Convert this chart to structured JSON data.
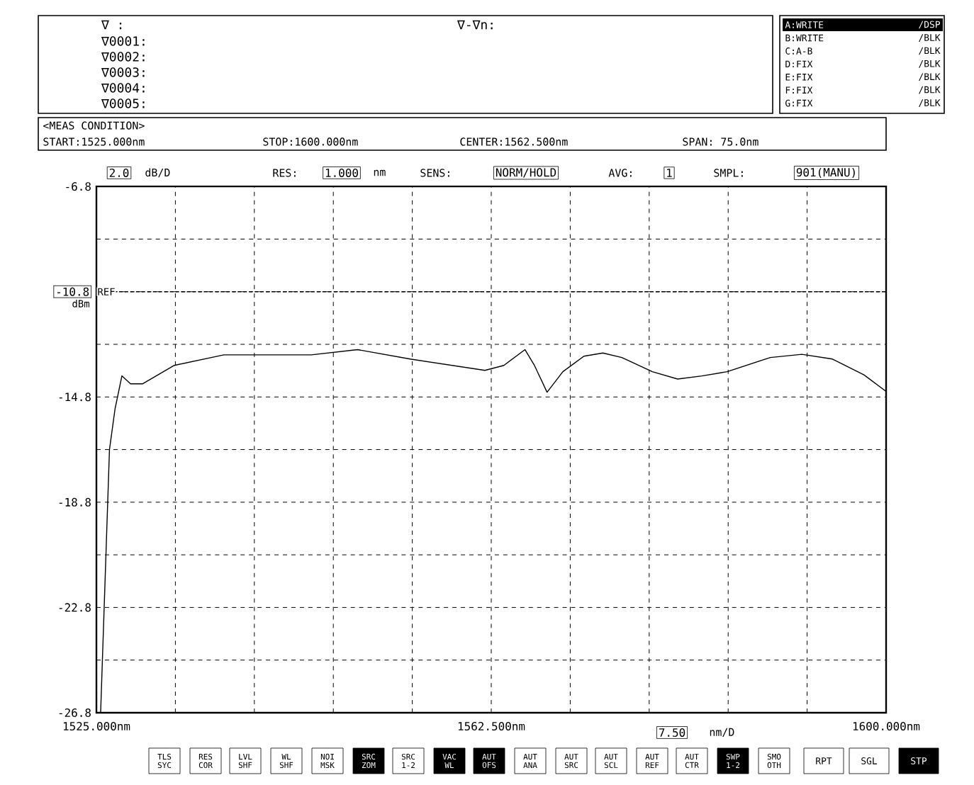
{
  "chart_data": {
    "type": "line",
    "color": "#000000",
    "line_style": "solid",
    "grid": true,
    "ylabel": "dBm",
    "x": [
      1525.4,
      1526.24,
      1526.77,
      1527.42,
      1528.24,
      1529.4,
      1532.4,
      1537.1,
      1545.4,
      1549.8,
      1554.8,
      1561.9,
      1563.7,
      1565.7,
      1566.6,
      1567.8,
      1569.3,
      1571.3,
      1573.1,
      1574.9,
      1577.8,
      1580.2,
      1582.5,
      1584.9,
      1589.0,
      1592.0,
      1594.9,
      1597.9,
      1600
    ],
    "values": [
      -26.8,
      -16.8,
      -15.25,
      -14.0,
      -14.3,
      -14.3,
      -13.6,
      -13.2,
      -13.2,
      -13.0,
      -13.36,
      -13.79,
      -13.6,
      -13.0,
      -13.6,
      -14.62,
      -13.84,
      -13.25,
      -13.13,
      -13.3,
      -13.84,
      -14.12,
      -14.0,
      -13.84,
      -13.3,
      -13.18,
      -13.36,
      -13.96,
      -14.59
    ],
    "xlim": [
      1525,
      1600
    ],
    "ylim": [
      -26.8,
      -6.8
    ],
    "xticks": [
      {
        "value": 1525,
        "label": "1525.000nm"
      },
      {
        "value": 1532.5,
        "label": null
      },
      {
        "value": 1540,
        "label": null
      },
      {
        "value": 1547.5,
        "label": null
      },
      {
        "value": 1555,
        "label": null
      },
      {
        "value": 1562.5,
        "label": "1562.500nm"
      },
      {
        "value": 1570,
        "label": null
      },
      {
        "value": 1577.5,
        "label": null
      },
      {
        "value": 1585,
        "label": null
      },
      {
        "value": 1592.5,
        "label": null
      },
      {
        "value": 1600,
        "label": "1600.000nm"
      }
    ],
    "yticks": [
      -6.8,
      {
        "value": -8.8,
        "label": null
      },
      -10.8,
      {
        "value": -12.8,
        "label": null
      },
      -14.8,
      {
        "value": -16.8,
        "label": null
      },
      -18.8,
      {
        "value": -20.8,
        "label": null
      },
      -22.8,
      {
        "value": -24.8,
        "label": null
      },
      -26.8
    ],
    "ref_lines": [
      {
        "axis": "y",
        "value": -10.8,
        "label": "REF"
      }
    ],
    "annotations": [
      "∇ :",
      "∇0001:",
      "∇0002:",
      "∇0003:",
      "∇0004:",
      "∇0005:",
      "∇-∇n:",
      "A:WRITE",
      "/DSP",
      "B:WRITE",
      "/BLK",
      "C:A-B",
      "/BLK",
      "D:FIX",
      "/BLK",
      "E:FIX",
      "/BLK",
      "F:FIX",
      "/BLK",
      "G:FIX",
      "/BLK",
      "<MEAS CONDITION>",
      "START:1525.000nm",
      "STOP:1600.000nm",
      "CENTER:1562.500nm",
      "SPAN: 75.0nm",
      "2.0",
      "dB/D",
      "RES:",
      "1.000",
      "nm",
      "SENS:",
      "NORM/HOLD",
      "AVG:",
      "1",
      "SMPL:",
      "901(MANU)",
      "7.50",
      "nm/D",
      "TLS SYC",
      "RES COR",
      "LVL SHF",
      "WL SHF",
      "NOI MSK",
      "SRC ZOM",
      "SRC 1-2",
      "VAC WL",
      "AUT OFS",
      "AUT ANA",
      "AUT SRC",
      "AUT SCL",
      "AUT REF",
      "AUT CTR",
      "SWP 1-2",
      "SMO OTH",
      "RPT",
      "SGL",
      "STP"
    ]
  }
}
